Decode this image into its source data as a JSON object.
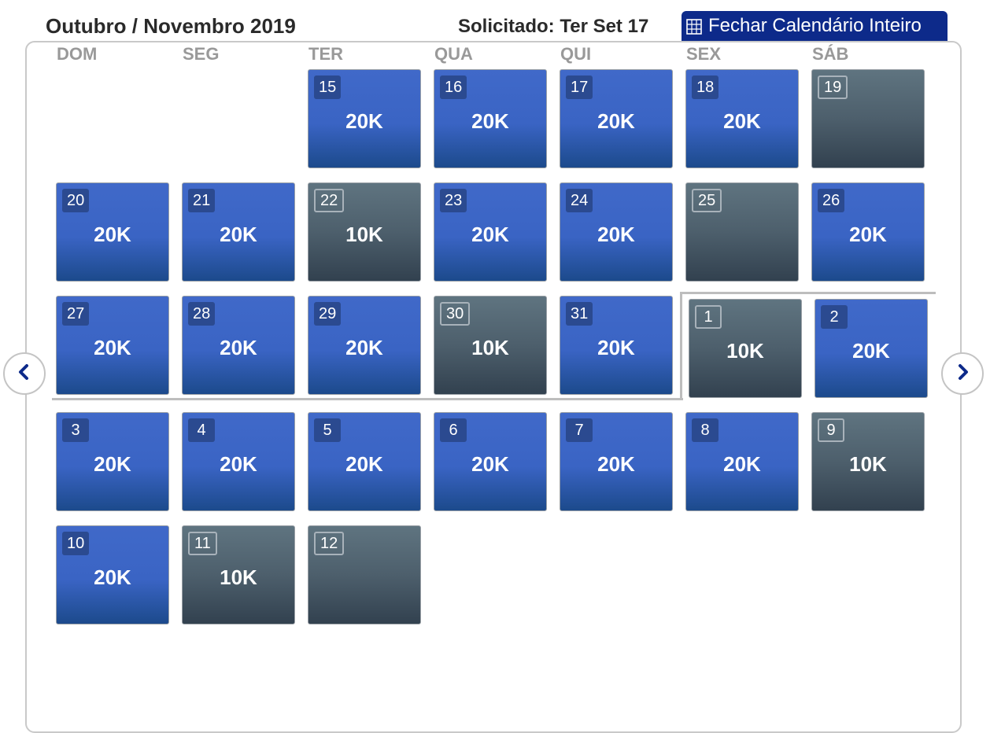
{
  "header": {
    "title": "Outubro / Novembro 2019",
    "requested": "Solicitado: Ter Set 17",
    "close_button": "Fechar Calendário Inteiro"
  },
  "weekdays": [
    "DOM",
    "SEG",
    "TER",
    "QUA",
    "QUI",
    "SEX",
    "SÁB"
  ],
  "days": [
    {
      "day": "15",
      "value": "20K",
      "available": true
    },
    {
      "day": "16",
      "value": "20K",
      "available": true
    },
    {
      "day": "17",
      "value": "20K",
      "available": true
    },
    {
      "day": "18",
      "value": "20K",
      "available": true
    },
    {
      "day": "19",
      "value": "",
      "available": false
    },
    {
      "day": "20",
      "value": "20K",
      "available": true
    },
    {
      "day": "21",
      "value": "20K",
      "available": true
    },
    {
      "day": "22",
      "value": "10K",
      "available": false
    },
    {
      "day": "23",
      "value": "20K",
      "available": true
    },
    {
      "day": "24",
      "value": "20K",
      "available": true
    },
    {
      "day": "25",
      "value": "",
      "available": false
    },
    {
      "day": "26",
      "value": "20K",
      "available": true
    },
    {
      "day": "27",
      "value": "20K",
      "available": true
    },
    {
      "day": "28",
      "value": "20K",
      "available": true
    },
    {
      "day": "29",
      "value": "20K",
      "available": true
    },
    {
      "day": "30",
      "value": "10K",
      "available": false
    },
    {
      "day": "31",
      "value": "20K",
      "available": true
    },
    {
      "day": "1",
      "value": "10K",
      "available": false
    },
    {
      "day": "2",
      "value": "20K",
      "available": true
    },
    {
      "day": "3",
      "value": "20K",
      "available": true
    },
    {
      "day": "4",
      "value": "20K",
      "available": true
    },
    {
      "day": "5",
      "value": "20K",
      "available": true
    },
    {
      "day": "6",
      "value": "20K",
      "available": true
    },
    {
      "day": "7",
      "value": "20K",
      "available": true
    },
    {
      "day": "8",
      "value": "20K",
      "available": true
    },
    {
      "day": "9",
      "value": "10K",
      "available": false
    },
    {
      "day": "10",
      "value": "20K",
      "available": true
    },
    {
      "day": "11",
      "value": "10K",
      "available": false
    },
    {
      "day": "12",
      "value": "",
      "available": false
    }
  ],
  "icons": {
    "close": "grid-icon",
    "prev": "chevron-left-icon",
    "next": "chevron-right-icon"
  },
  "colors": {
    "available": "#3a64c4",
    "unavailable": "#4d5f6c",
    "button": "#0d2a8a",
    "nav": "#0d2a8a"
  }
}
